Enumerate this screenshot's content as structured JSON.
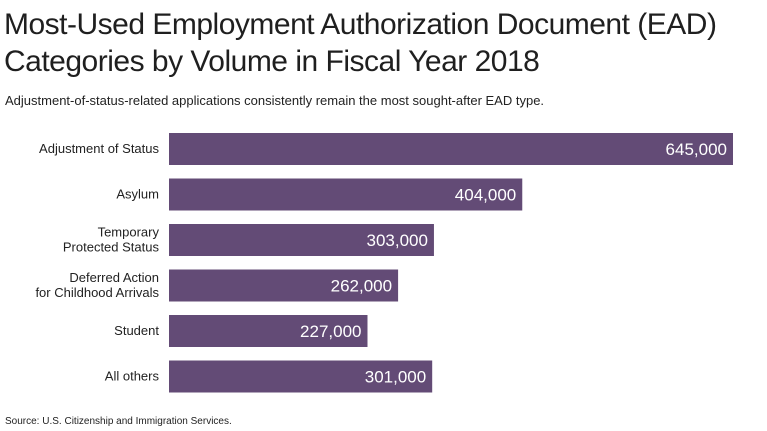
{
  "title": "Most-Used Employment Authorization Document (EAD)\nCategories by Volume in Fiscal Year 2018",
  "subtitle": "Adjustment-of-status-related applications consistently remain the most sought-after EAD type.",
  "source": "Source: U.S. Citizenship and Immigration Services.",
  "colors": {
    "bar": "#634b76",
    "bar_label": "#ffffff",
    "text": "#222222"
  },
  "chart_data": {
    "type": "bar",
    "orientation": "horizontal",
    "categories": [
      [
        "Adjustment of Status"
      ],
      [
        "Asylum"
      ],
      [
        "Temporary",
        "Protected Status"
      ],
      [
        "Deferred Action",
        "for Childhood Arrivals"
      ],
      [
        "Student"
      ],
      [
        "All others"
      ]
    ],
    "values": [
      645000,
      404000,
      303000,
      262000,
      227000,
      301000
    ],
    "value_labels": [
      "645,000",
      "404,000",
      "303,000",
      "262,000",
      "227,000",
      "301,000"
    ],
    "xlim": [
      0,
      645000
    ],
    "grid": false,
    "legend": "none"
  }
}
